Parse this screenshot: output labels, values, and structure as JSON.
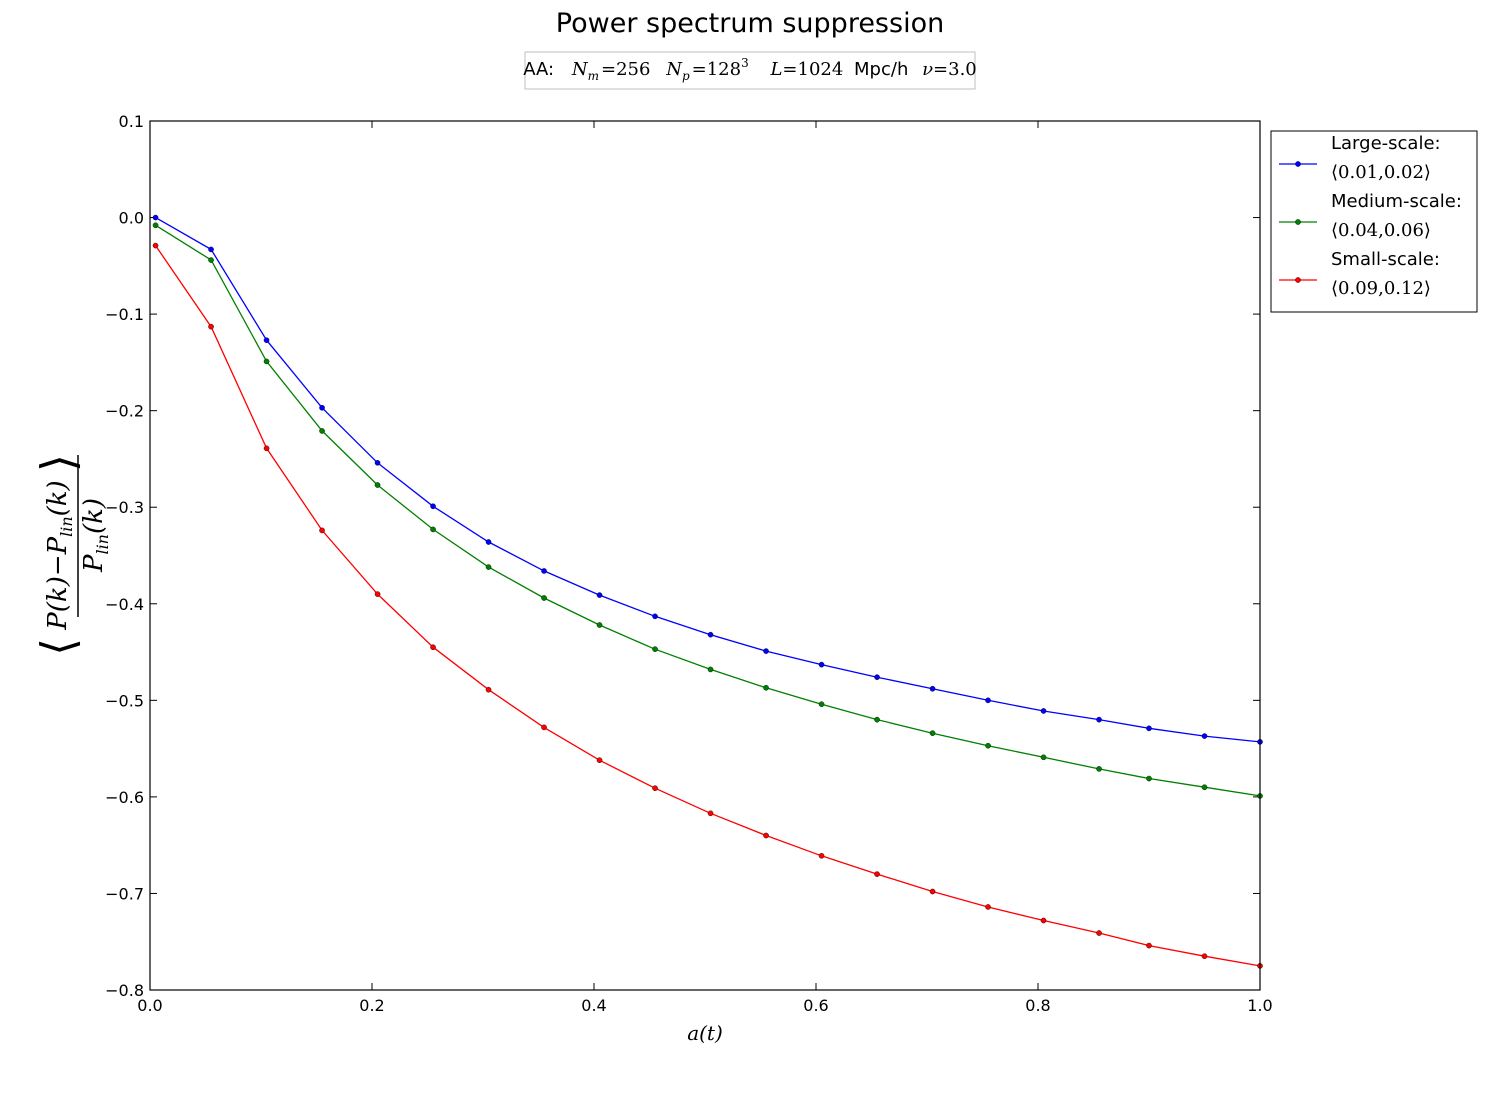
{
  "chart_data": {
    "type": "line",
    "title": "Power spectrum suppression",
    "subtitle": {
      "prefix": "AA:",
      "nm_symbol": "N",
      "nm_sub": "m",
      "nm_value": "=256",
      "np_symbol": "N",
      "np_sub": "p",
      "np_value": "=128",
      "np_exp": "3",
      "l_symbol": "L",
      "l_value": "=1024",
      "l_unit": "Mpc/h",
      "nu_symbol": "ν",
      "nu_value": "=3.0"
    },
    "xlabel": "a(t)",
    "ylabel": "⟨(P(k) − P_lin(k)) / P_lin(k)⟩",
    "xlim": [
      0.0,
      1.0
    ],
    "ylim": [
      -0.8,
      0.1
    ],
    "x_ticks": [
      "0.0",
      "0.2",
      "0.4",
      "0.6",
      "0.8",
      "1.0"
    ],
    "y_ticks": [
      "0.1",
      "0.0",
      "−0.1",
      "−0.2",
      "−0.3",
      "−0.4",
      "−0.5",
      "−0.6",
      "−0.7",
      "−0.8"
    ],
    "grid": false,
    "legend_position": "outside-right-top",
    "x": [
      0.005,
      0.055,
      0.105,
      0.155,
      0.205,
      0.255,
      0.305,
      0.355,
      0.405,
      0.455,
      0.505,
      0.555,
      0.605,
      0.655,
      0.705,
      0.755,
      0.805,
      0.855,
      0.9,
      0.95,
      1.0
    ],
    "series": [
      {
        "name": "Large-scale:",
        "range_label": "⟨0.01,0.02⟩",
        "color": "#0000ff",
        "values": [
          0.0,
          -0.033,
          -0.127,
          -0.197,
          -0.254,
          -0.299,
          -0.336,
          -0.366,
          -0.391,
          -0.413,
          -0.432,
          -0.449,
          -0.463,
          -0.476,
          -0.488,
          -0.5,
          -0.511,
          -0.52,
          -0.529,
          -0.537,
          -0.543
        ]
      },
      {
        "name": "Medium-scale:",
        "range_label": "⟨0.04,0.06⟩",
        "color": "#008000",
        "values": [
          -0.008,
          -0.044,
          -0.149,
          -0.221,
          -0.277,
          -0.323,
          -0.362,
          -0.394,
          -0.422,
          -0.447,
          -0.468,
          -0.487,
          -0.504,
          -0.52,
          -0.534,
          -0.547,
          -0.559,
          -0.571,
          -0.581,
          -0.59,
          -0.599
        ]
      },
      {
        "name": "Small-scale:",
        "range_label": "⟨0.09,0.12⟩",
        "color": "#ff0000",
        "values": [
          -0.029,
          -0.113,
          -0.239,
          -0.324,
          -0.39,
          -0.445,
          -0.489,
          -0.528,
          -0.562,
          -0.591,
          -0.617,
          -0.64,
          -0.661,
          -0.68,
          -0.698,
          -0.714,
          -0.728,
          -0.741,
          -0.754,
          -0.765,
          -0.775
        ]
      }
    ]
  }
}
